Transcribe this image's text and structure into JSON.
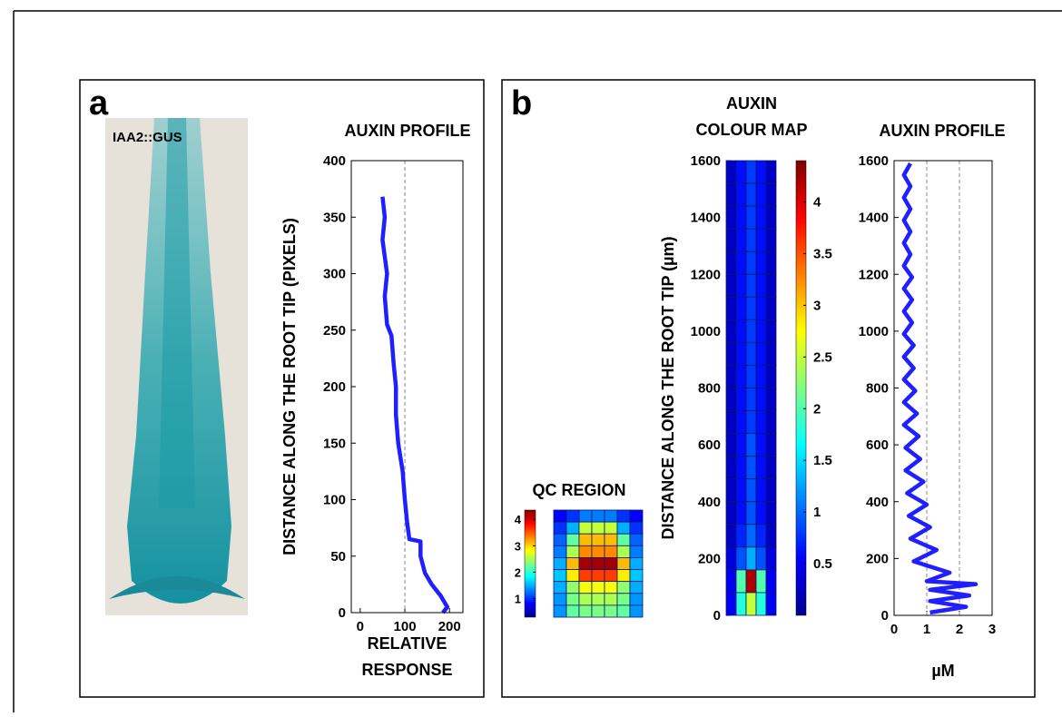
{
  "panel_labels": [
    "a",
    "b"
  ],
  "image_label": "IAA2::GUS",
  "chart_data": [
    {
      "type": "line",
      "title": "AUXIN PROFILE",
      "ylabel": "DISTANCE ALONG THE ROOT TIP (PIXELS)",
      "xlabel": [
        "RELATIVE",
        "RESPONSE"
      ],
      "xlim": [
        -20,
        230
      ],
      "xticks": [
        0,
        100,
        200
      ],
      "ylim": [
        0,
        400
      ],
      "yticks": [
        0,
        50,
        100,
        150,
        200,
        250,
        300,
        350,
        400
      ],
      "xref": [
        100
      ],
      "color": "#1f1fff",
      "x": [
        50,
        55,
        50,
        60,
        55,
        60,
        70,
        75,
        80,
        80,
        85,
        95,
        100,
        105,
        110,
        135,
        135,
        145,
        160,
        180,
        195,
        185
      ],
      "values": [
        368,
        350,
        330,
        300,
        280,
        255,
        245,
        220,
        200,
        175,
        150,
        125,
        100,
        80,
        65,
        63,
        50,
        35,
        25,
        15,
        5,
        0
      ]
    },
    {
      "type": "heatmap",
      "title": "QC REGION",
      "colormap": "jet",
      "clim": [
        0.3,
        4.35
      ],
      "colorbar_ticks": [
        1,
        2,
        3,
        4
      ],
      "values": [
        [
          0.8,
          1.0,
          1.3,
          1.3,
          1.3,
          1.0,
          0.8
        ],
        [
          1.0,
          1.5,
          2.6,
          2.6,
          2.6,
          1.5,
          1.0
        ],
        [
          1.2,
          2.2,
          3.1,
          3.1,
          3.1,
          2.2,
          1.2
        ],
        [
          1.3,
          2.5,
          3.3,
          3.3,
          3.3,
          2.5,
          1.3
        ],
        [
          1.5,
          3.1,
          4.2,
          4.2,
          4.2,
          3.1,
          1.5
        ],
        [
          1.6,
          2.9,
          3.6,
          3.6,
          3.6,
          2.9,
          1.6
        ],
        [
          1.5,
          2.4,
          2.8,
          2.8,
          2.8,
          2.4,
          1.5
        ],
        [
          1.4,
          2.3,
          2.5,
          2.5,
          2.5,
          2.3,
          1.4
        ],
        [
          1.4,
          2.2,
          2.3,
          2.3,
          2.3,
          2.2,
          1.4
        ]
      ]
    },
    {
      "type": "heatmap",
      "title": [
        "AUXIN",
        "COLOUR MAP"
      ],
      "ylabel": "DISTANCE ALONG THE ROOT TIP (µm)",
      "colormap": "jet",
      "ylim": [
        0,
        1600
      ],
      "yticks": [
        0,
        200,
        400,
        600,
        800,
        1000,
        1200,
        1400,
        1600
      ],
      "clim": [
        0,
        4.4
      ],
      "colorbar_ticks": [
        0.5,
        1,
        1.5,
        2,
        2.5,
        3,
        3.5,
        4
      ],
      "values": [
        [
          0.3,
          0.6,
          0.8,
          0.6,
          0.3
        ],
        [
          0.3,
          0.6,
          0.8,
          0.6,
          0.3
        ],
        [
          0.3,
          0.6,
          0.8,
          0.6,
          0.3
        ],
        [
          0.3,
          0.6,
          0.8,
          0.6,
          0.3
        ],
        [
          0.3,
          0.6,
          0.8,
          0.6,
          0.3
        ],
        [
          0.3,
          0.6,
          0.8,
          0.6,
          0.3
        ],
        [
          0.3,
          0.6,
          0.8,
          0.6,
          0.3
        ],
        [
          0.3,
          0.6,
          0.8,
          0.6,
          0.3
        ],
        [
          0.3,
          0.6,
          0.8,
          0.6,
          0.3
        ],
        [
          0.3,
          0.6,
          0.8,
          0.6,
          0.3
        ],
        [
          0.3,
          0.6,
          0.8,
          0.6,
          0.3
        ],
        [
          0.3,
          0.6,
          0.8,
          0.6,
          0.3
        ],
        [
          0.3,
          0.6,
          0.9,
          0.6,
          0.3
        ],
        [
          0.3,
          0.6,
          0.9,
          0.6,
          0.3
        ],
        [
          0.3,
          0.6,
          0.9,
          0.6,
          0.3
        ],
        [
          0.3,
          0.6,
          0.9,
          0.6,
          0.3
        ],
        [
          0.3,
          0.7,
          1.0,
          0.7,
          0.3
        ],
        [
          0.4,
          0.9,
          1.3,
          0.9,
          0.4
        ],
        [
          0.5,
          2.0,
          4.2,
          2.0,
          0.5
        ],
        [
          0.5,
          1.8,
          2.5,
          1.8,
          0.5
        ]
      ]
    },
    {
      "type": "line",
      "title": "AUXIN PROFILE",
      "xlabel": [
        "µM"
      ],
      "xlim": [
        0,
        3
      ],
      "xticks": [
        0,
        1,
        2,
        3
      ],
      "ylim": [
        0,
        1600
      ],
      "yticks": [
        0,
        200,
        400,
        600,
        800,
        1000,
        1200,
        1400,
        1600
      ],
      "xref": [
        1,
        2
      ],
      "color": "#1f1fff",
      "x": [
        0.5,
        0.3,
        0.5,
        0.3,
        0.5,
        0.3,
        0.5,
        0.3,
        0.5,
        0.3,
        0.55,
        0.3,
        0.55,
        0.3,
        0.55,
        0.3,
        0.6,
        0.3,
        0.6,
        0.3,
        0.65,
        0.3,
        0.7,
        0.3,
        0.75,
        0.35,
        0.8,
        0.35,
        0.9,
        0.4,
        1.0,
        0.45,
        1.1,
        0.5,
        1.3,
        0.6,
        1.7,
        1.0,
        2.5,
        1.1,
        2.3,
        1.1,
        2.2,
        1.1
      ],
      "values": [
        1590,
        1550,
        1510,
        1470,
        1430,
        1390,
        1350,
        1310,
        1270,
        1230,
        1190,
        1150,
        1110,
        1070,
        1030,
        990,
        950,
        910,
        870,
        830,
        790,
        750,
        710,
        670,
        630,
        590,
        550,
        510,
        470,
        430,
        390,
        350,
        310,
        270,
        230,
        190,
        150,
        120,
        110,
        90,
        70,
        50,
        30,
        10
      ]
    }
  ]
}
